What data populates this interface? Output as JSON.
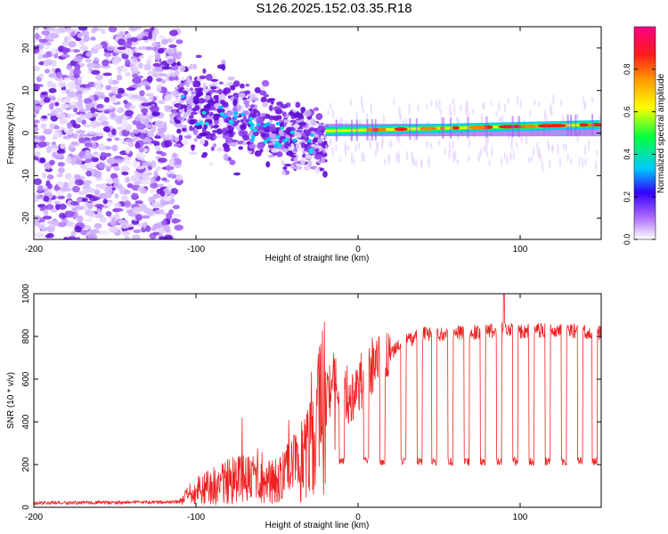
{
  "title": "S126.2025.152.03.35.R18",
  "chart_data": [
    {
      "type": "heatmap",
      "xlabel": "Height of straight line (km)",
      "ylabel": "Frequency (Hz)",
      "xlim": [
        -200,
        150
      ],
      "ylim": [
        -25,
        25
      ],
      "x_ticks": [
        -200,
        -100,
        0,
        100
      ],
      "y_ticks": [
        -20,
        -10,
        0,
        10,
        20
      ],
      "colorbar": {
        "label": "Normalized spectral amplitude",
        "range": [
          0,
          1
        ],
        "ticks": [
          "0.0",
          "0.2",
          "0.4",
          "0.6",
          "0.8"
        ],
        "colors": [
          "#f5f0ff",
          "#d8b8ff",
          "#7a1fdf",
          "#0000ff",
          "#00c8ff",
          "#00ff60",
          "#ffff00",
          "#ff8000",
          "#ff1a1a",
          "#ff0080"
        ]
      },
      "features": [
        {
          "region": "noise",
          "x_range": [
            -200,
            -110
          ],
          "freq_range": [
            -25,
            25
          ],
          "amplitude": 0.1
        },
        {
          "region": "emerging signal",
          "x_range": [
            -110,
            -20
          ],
          "freq_center": [
            8,
            -3
          ],
          "freq_spread": 6,
          "amplitude": 0.2
        },
        {
          "region": "carrier line",
          "x_range": [
            -20,
            150
          ],
          "freq": [
            0.5,
            2
          ],
          "amplitude": 0.8
        }
      ]
    },
    {
      "type": "line",
      "xlabel": "Height of straight line (km)",
      "ylabel": "SNR (10 * v/v)",
      "xlim": [
        -200,
        150
      ],
      "ylim": [
        0,
        1000
      ],
      "x_ticks": [
        -200,
        -100,
        0,
        100
      ],
      "y_ticks": [
        0,
        200,
        400,
        600,
        800,
        1000
      ],
      "color": "#ee2222",
      "series_points": [
        {
          "x": -200,
          "y": 20
        },
        {
          "x": -110,
          "y": 25
        },
        {
          "x": -100,
          "y": 80
        },
        {
          "x": -80,
          "y": 120
        },
        {
          "x": -60,
          "y": 150
        },
        {
          "x": -50,
          "y": 120
        },
        {
          "x": -40,
          "y": 180
        },
        {
          "x": -30,
          "y": 250
        },
        {
          "x": -20,
          "y": 500
        },
        {
          "x": -15,
          "y": 600
        },
        {
          "x": -10,
          "y": 560
        },
        {
          "x": -5,
          "y": 520
        },
        {
          "x": 0,
          "y": 560
        },
        {
          "x": 10,
          "y": 680
        },
        {
          "x": 20,
          "y": 720
        },
        {
          "x": 30,
          "y": 780
        },
        {
          "x": 40,
          "y": 810
        },
        {
          "x": 60,
          "y": 815
        },
        {
          "x": 80,
          "y": 820
        },
        {
          "x": 90,
          "y": 840
        },
        {
          "x": 100,
          "y": 825
        },
        {
          "x": 120,
          "y": 830
        },
        {
          "x": 140,
          "y": 820
        },
        {
          "x": 150,
          "y": 815
        }
      ],
      "dropouts_x": [
        -10,
        5,
        15,
        28,
        38,
        47,
        57,
        67,
        77,
        87,
        97,
        107,
        117,
        127,
        137,
        146
      ],
      "dropout_level": 215
    }
  ]
}
